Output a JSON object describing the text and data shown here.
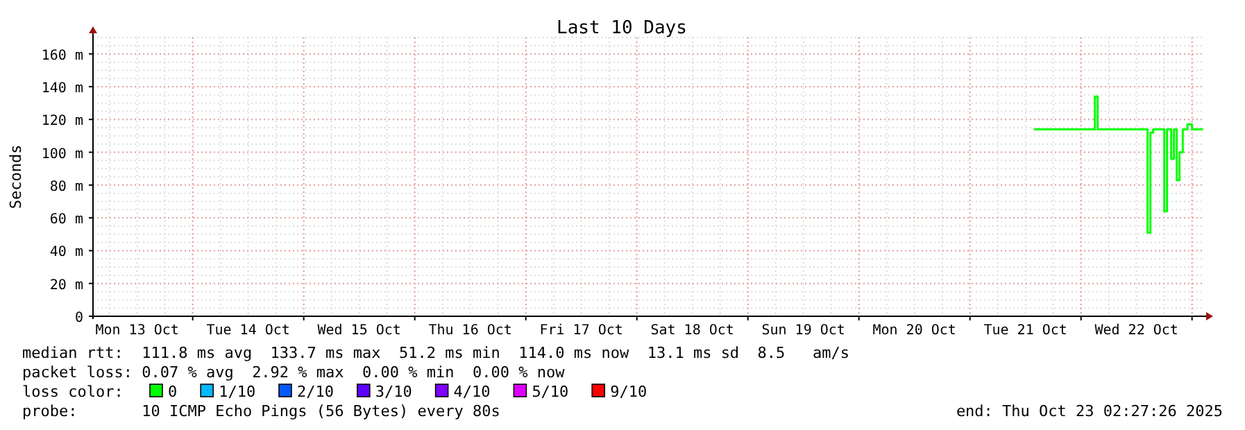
{
  "chart_data": {
    "type": "step",
    "title": "Last 10 Days",
    "ylabel": "Seconds",
    "legend_title": "loss color:",
    "legend": "bottom",
    "grid": true,
    "xlim": [
      "2025-10-13T02:27",
      "2025-10-23T02:27"
    ],
    "xticks": [
      {
        "value": "2025-10-13T12:00",
        "label": "Mon 13 Oct"
      },
      {
        "value": "2025-10-14T12:00",
        "label": "Tue 14 Oct"
      },
      {
        "value": "2025-10-15T12:00",
        "label": "Wed 15 Oct"
      },
      {
        "value": "2025-10-16T12:00",
        "label": "Thu 16 Oct"
      },
      {
        "value": "2025-10-17T12:00",
        "label": "Fri 17 Oct"
      },
      {
        "value": "2025-10-18T12:00",
        "label": "Sat 18 Oct"
      },
      {
        "value": "2025-10-19T12:00",
        "label": "Sun 19 Oct"
      },
      {
        "value": "2025-10-20T12:00",
        "label": "Mon 20 Oct"
      },
      {
        "value": "2025-10-21T12:00",
        "label": "Tue 21 Oct"
      },
      {
        "value": "2025-10-22T12:00",
        "label": "Wed 22 Oct"
      },
      {
        "value": "2025-10-14T00:00",
        "label": null
      },
      {
        "value": "2025-10-15T00:00",
        "label": null
      },
      {
        "value": "2025-10-16T00:00",
        "label": null
      },
      {
        "value": "2025-10-17T00:00",
        "label": null
      },
      {
        "value": "2025-10-18T00:00",
        "label": null
      },
      {
        "value": "2025-10-19T00:00",
        "label": null
      },
      {
        "value": "2025-10-20T00:00",
        "label": null
      },
      {
        "value": "2025-10-21T00:00",
        "label": null
      },
      {
        "value": "2025-10-22T00:00",
        "label": null
      },
      {
        "value": "2025-10-23T00:00",
        "label": null
      }
    ],
    "ylim": [
      0,
      170
    ],
    "yticks": [
      0,
      {
        "value": 20,
        "label": "20 m"
      },
      {
        "value": 40,
        "label": "40 m"
      },
      {
        "value": 60,
        "label": "60 m"
      },
      {
        "value": 80,
        "label": "80 m"
      },
      {
        "value": 100,
        "label": "100 m"
      },
      {
        "value": 120,
        "label": "120 m"
      },
      {
        "value": 140,
        "label": "140 m"
      },
      {
        "value": 160,
        "label": "160 m"
      }
    ],
    "series": [
      {
        "name": "0",
        "color": "#00ff00",
        "x": [
          "2025-10-21T13:48",
          "2025-10-22T03:00",
          "2025-10-22T03:36",
          "2025-10-22T14:24",
          "2025-10-22T15:00",
          "2025-10-22T15:36",
          "2025-10-22T18:00",
          "2025-10-22T18:36",
          "2025-10-22T19:30",
          "2025-10-22T20:06",
          "2025-10-22T20:42",
          "2025-10-22T21:18",
          "2025-10-22T22:00",
          "2025-10-22T23:00",
          "2025-10-23T00:00",
          "2025-10-23T02:24"
        ],
        "values": [
          114,
          134,
          114,
          51,
          112,
          114,
          64,
          114,
          96,
          114,
          83,
          100,
          114,
          117,
          114,
          114
        ]
      },
      {
        "name": "1/10",
        "color": "#00b8ff"
      },
      {
        "name": "2/10",
        "color": "#0059ff"
      },
      {
        "name": "3/10",
        "color": "#5e00ff"
      },
      {
        "name": "4/10",
        "color": "#7e00ff"
      },
      {
        "name": "5/10",
        "color": "#dd00ff"
      },
      {
        "name": "9/10",
        "color": "#ff0000"
      }
    ],
    "annotations": [
      "median rtt:  111.8 ms avg  133.7 ms max  51.2 ms min  114.0 ms now  13.1 ms sd  8.5   am/s",
      "packet loss: 0.07 % avg  2.92 % max  0.00 % min  0.00 % now",
      "probe:       10 ICMP Echo Pings (56 Bytes) every 80s",
      "end: Thu Oct 23 02:27:26 2025"
    ]
  }
}
